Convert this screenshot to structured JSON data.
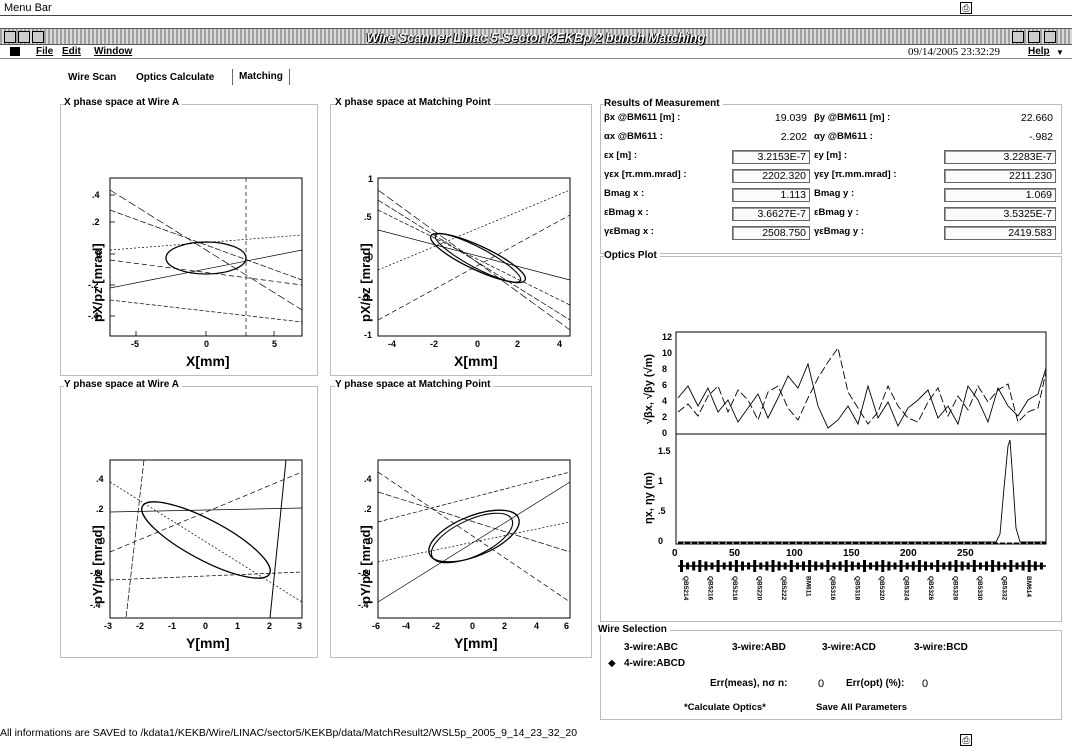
{
  "outer": {
    "menu_label": "Menu Bar"
  },
  "window": {
    "title": "Wire Scanner Linac 5-Sector KEKBp 2 bunch Matching"
  },
  "menu": {
    "file": "File",
    "edit": "Edit",
    "window": "Window",
    "help": "Help",
    "datetime": "09/14/2005 23:32:29"
  },
  "tabs": [
    {
      "label": "Wire Scan"
    },
    {
      "label": "Optics Calculate"
    },
    {
      "label": "Matching"
    }
  ],
  "plots": {
    "xa": {
      "title": "X phase space at Wire A",
      "xlabel": "X[mm]",
      "ylabel": "pX/pz [mrad]"
    },
    "xm": {
      "title": "X phase space at Matching Point",
      "xlabel": "X[mm]",
      "ylabel": "pX/pz [mrad]"
    },
    "ya": {
      "title": "Y phase space at Wire A",
      "xlabel": "Y[mm]",
      "ylabel": "pY/pz [mrad]"
    },
    "ym": {
      "title": "Y phase space at Matching Point",
      "xlabel": "Y[mm]",
      "ylabel": "pY/pz [mrad]"
    }
  },
  "results": {
    "title": "Results of Measurement",
    "rows": [
      {
        "lx": "βx @BM611 [m] :",
        "vx": "19.039",
        "ly": "βy @BM611 [m] :",
        "vy": "22.660",
        "boxed": false
      },
      {
        "lx": "αx @BM611 :",
        "vx": "2.202",
        "ly": "αy @BM611 :",
        "vy": "-.982",
        "boxed": false
      },
      {
        "lx": "εx [m] :",
        "vx": "3.2153E-7",
        "ly": "εy [m] :",
        "vy": "3.2283E-7",
        "boxed": true
      },
      {
        "lx": "γεx [π.mm.mrad] :",
        "vx": "2202.320",
        "ly": "γεy [π.mm.mrad] :",
        "vy": "2211.230",
        "boxed": true
      },
      {
        "lx": "Bmag x :",
        "vx": "1.113",
        "ly": "Bmag y :",
        "vy": "1.069",
        "boxed": true
      },
      {
        "lx": "εBmag x :",
        "vx": "3.6627E-7",
        "ly": "εBmag y :",
        "vy": "3.5325E-7",
        "boxed": true
      },
      {
        "lx": "γεBmag x :",
        "vx": "2508.750",
        "ly": "γεBmag y :",
        "vy": "2419.583",
        "boxed": true
      }
    ]
  },
  "optics": {
    "title": "Optics Plot",
    "beta_ylabel": "√βx, √βy (√m)",
    "eta_ylabel": "ηx, ηy (m)",
    "beta_ticks": [
      "12",
      "10",
      "8",
      "6",
      "4",
      "2",
      "0"
    ],
    "eta_ticks": [
      "1.5",
      "1",
      ".5",
      "0"
    ],
    "x_ticks": [
      "0",
      "50",
      "100",
      "150",
      "200",
      "250"
    ],
    "element_labels": [
      "QB5214",
      "QB5216",
      "QB5218",
      "QB5220",
      "QB5222",
      "BM611",
      "QB5316",
      "QB5318",
      "QB5320",
      "QB5324",
      "QB5326",
      "QB5328",
      "QB5330",
      "QB5332",
      "BM614"
    ]
  },
  "wire_selection": {
    "title": "Wire Selection",
    "options": [
      "3-wire:ABC",
      "3-wire:ABD",
      "3-wire:ACD",
      "3-wire:BCD",
      "4-wire:ABCD"
    ],
    "err_meas_label": "Err(meas), nσ  n:",
    "err_meas_value": "0",
    "err_opt_label": "Err(opt)  (%):",
    "err_opt_value": "0",
    "calc_button": "*Calculate Optics*",
    "save_button": "Save All Parameters"
  },
  "status": {
    "message": "All informations are SAVEd to /kdata1/KEKB/Wire/LINAC/sector5/KEKBp/data/MatchResult2/WSL5p_2005_9_14_23_32_20"
  }
}
